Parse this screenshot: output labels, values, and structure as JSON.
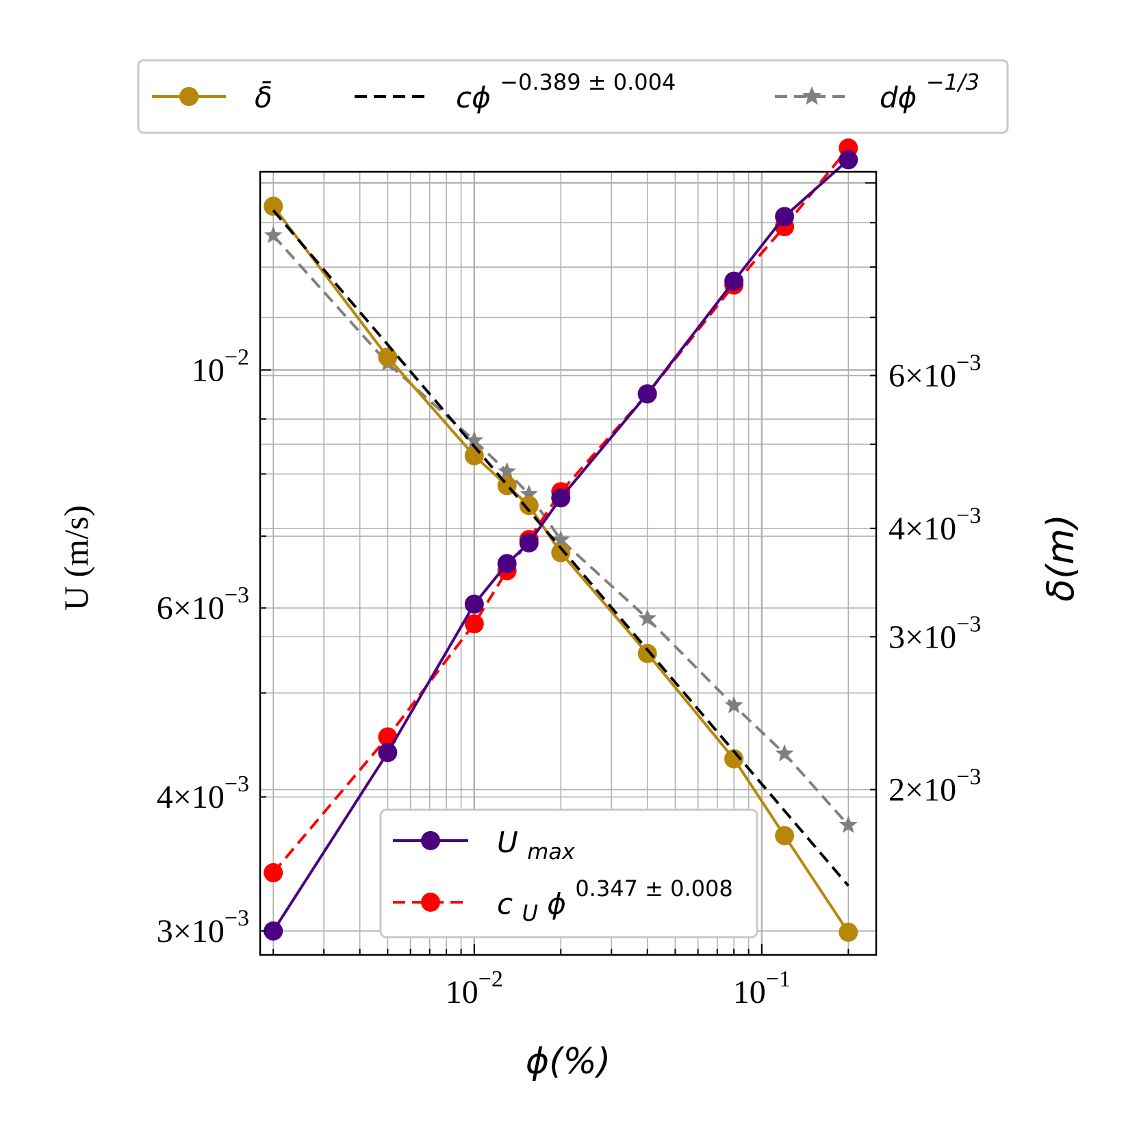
{
  "chart_data": {
    "type": "line",
    "xlabel": "ϕ(%)",
    "ylabel_left": "U (m/s)",
    "ylabel_right": "δ(m)",
    "x_scale": "log",
    "y_scale": "log",
    "y2_scale": "log",
    "grid": "both",
    "xlim": [
      0.0018,
      0.25
    ],
    "ylim_left": [
      0.00285,
      0.0153
    ],
    "ylim_right": [
      0.00129,
      0.0103
    ],
    "x_ticks": [
      {
        "value": 0.01,
        "base": "10",
        "exp": "−2"
      },
      {
        "value": 0.1,
        "base": "10",
        "exp": "−1"
      }
    ],
    "y_left_ticks": [
      {
        "value": 0.003,
        "mantissa": "3",
        "base": "10",
        "exp": "−3"
      },
      {
        "value": 0.004,
        "mantissa": "4",
        "base": "10",
        "exp": "−3"
      },
      {
        "value": 0.006,
        "mantissa": "6",
        "base": "10",
        "exp": "−3"
      },
      {
        "value": 0.01,
        "mantissa": "",
        "base": "10",
        "exp": "−2"
      }
    ],
    "y_right_ticks": [
      {
        "value": 0.002,
        "mantissa": "2",
        "base": "10",
        "exp": "−3"
      },
      {
        "value": 0.003,
        "mantissa": "3",
        "base": "10",
        "exp": "−3"
      },
      {
        "value": 0.004,
        "mantissa": "4",
        "base": "10",
        "exp": "−3"
      },
      {
        "value": 0.006,
        "mantissa": "6",
        "base": "10",
        "exp": "−3"
      }
    ],
    "series": [
      {
        "name": "δ̄",
        "axis": "right",
        "color": "#b8860b",
        "linestyle": "solid",
        "marker": "circle",
        "x": [
          0.002,
          0.005,
          0.01,
          0.013,
          0.0155,
          0.02,
          0.04,
          0.08,
          0.12,
          0.2
        ],
        "y": [
          0.0094,
          0.0063,
          0.00485,
          0.00448,
          0.00425,
          0.00375,
          0.00287,
          0.00217,
          0.00177,
          0.00137
        ]
      },
      {
        "name": "cϕ",
        "name_exp": "−0.389 ± 0.004",
        "axis": "right",
        "color": "#000000",
        "linestyle": "dashed",
        "marker": "none",
        "x": [
          0.002,
          0.2
        ],
        "y": [
          0.0093,
          0.00155
        ]
      },
      {
        "name": "dϕ",
        "name_exp": "−1/3",
        "axis": "right",
        "color": "#808080",
        "linestyle": "dashed",
        "marker": "star",
        "x": [
          0.002,
          0.005,
          0.01,
          0.013,
          0.0155,
          0.02,
          0.04,
          0.08,
          0.12,
          0.2
        ],
        "y": [
          0.0087,
          0.0062,
          0.00505,
          0.00465,
          0.00438,
          0.00388,
          0.00315,
          0.0025,
          0.0022,
          0.00182
        ]
      },
      {
        "name": "U",
        "name_sub": "max",
        "axis": "left",
        "color": "#4b0082",
        "linestyle": "solid",
        "marker": "circle",
        "x": [
          0.002,
          0.005,
          0.01,
          0.013,
          0.0155,
          0.02,
          0.04,
          0.08,
          0.12,
          0.2
        ],
        "y": [
          0.003,
          0.0044,
          0.00605,
          0.0066,
          0.0069,
          0.0076,
          0.0095,
          0.0121,
          0.0139,
          0.0157
        ]
      },
      {
        "name": "c",
        "name_sub": "U",
        "name_tail": "ϕ",
        "name_exp": "0.347 ± 0.008",
        "axis": "left",
        "color": "#ff0000",
        "linestyle": "dashed",
        "marker": "circle",
        "x": [
          0.002,
          0.005,
          0.01,
          0.013,
          0.0155,
          0.02,
          0.04,
          0.08,
          0.12,
          0.2
        ],
        "y": [
          0.0034,
          0.00455,
          0.0058,
          0.0065,
          0.00695,
          0.0077,
          0.0095,
          0.012,
          0.0136,
          0.0161
        ]
      }
    ]
  }
}
